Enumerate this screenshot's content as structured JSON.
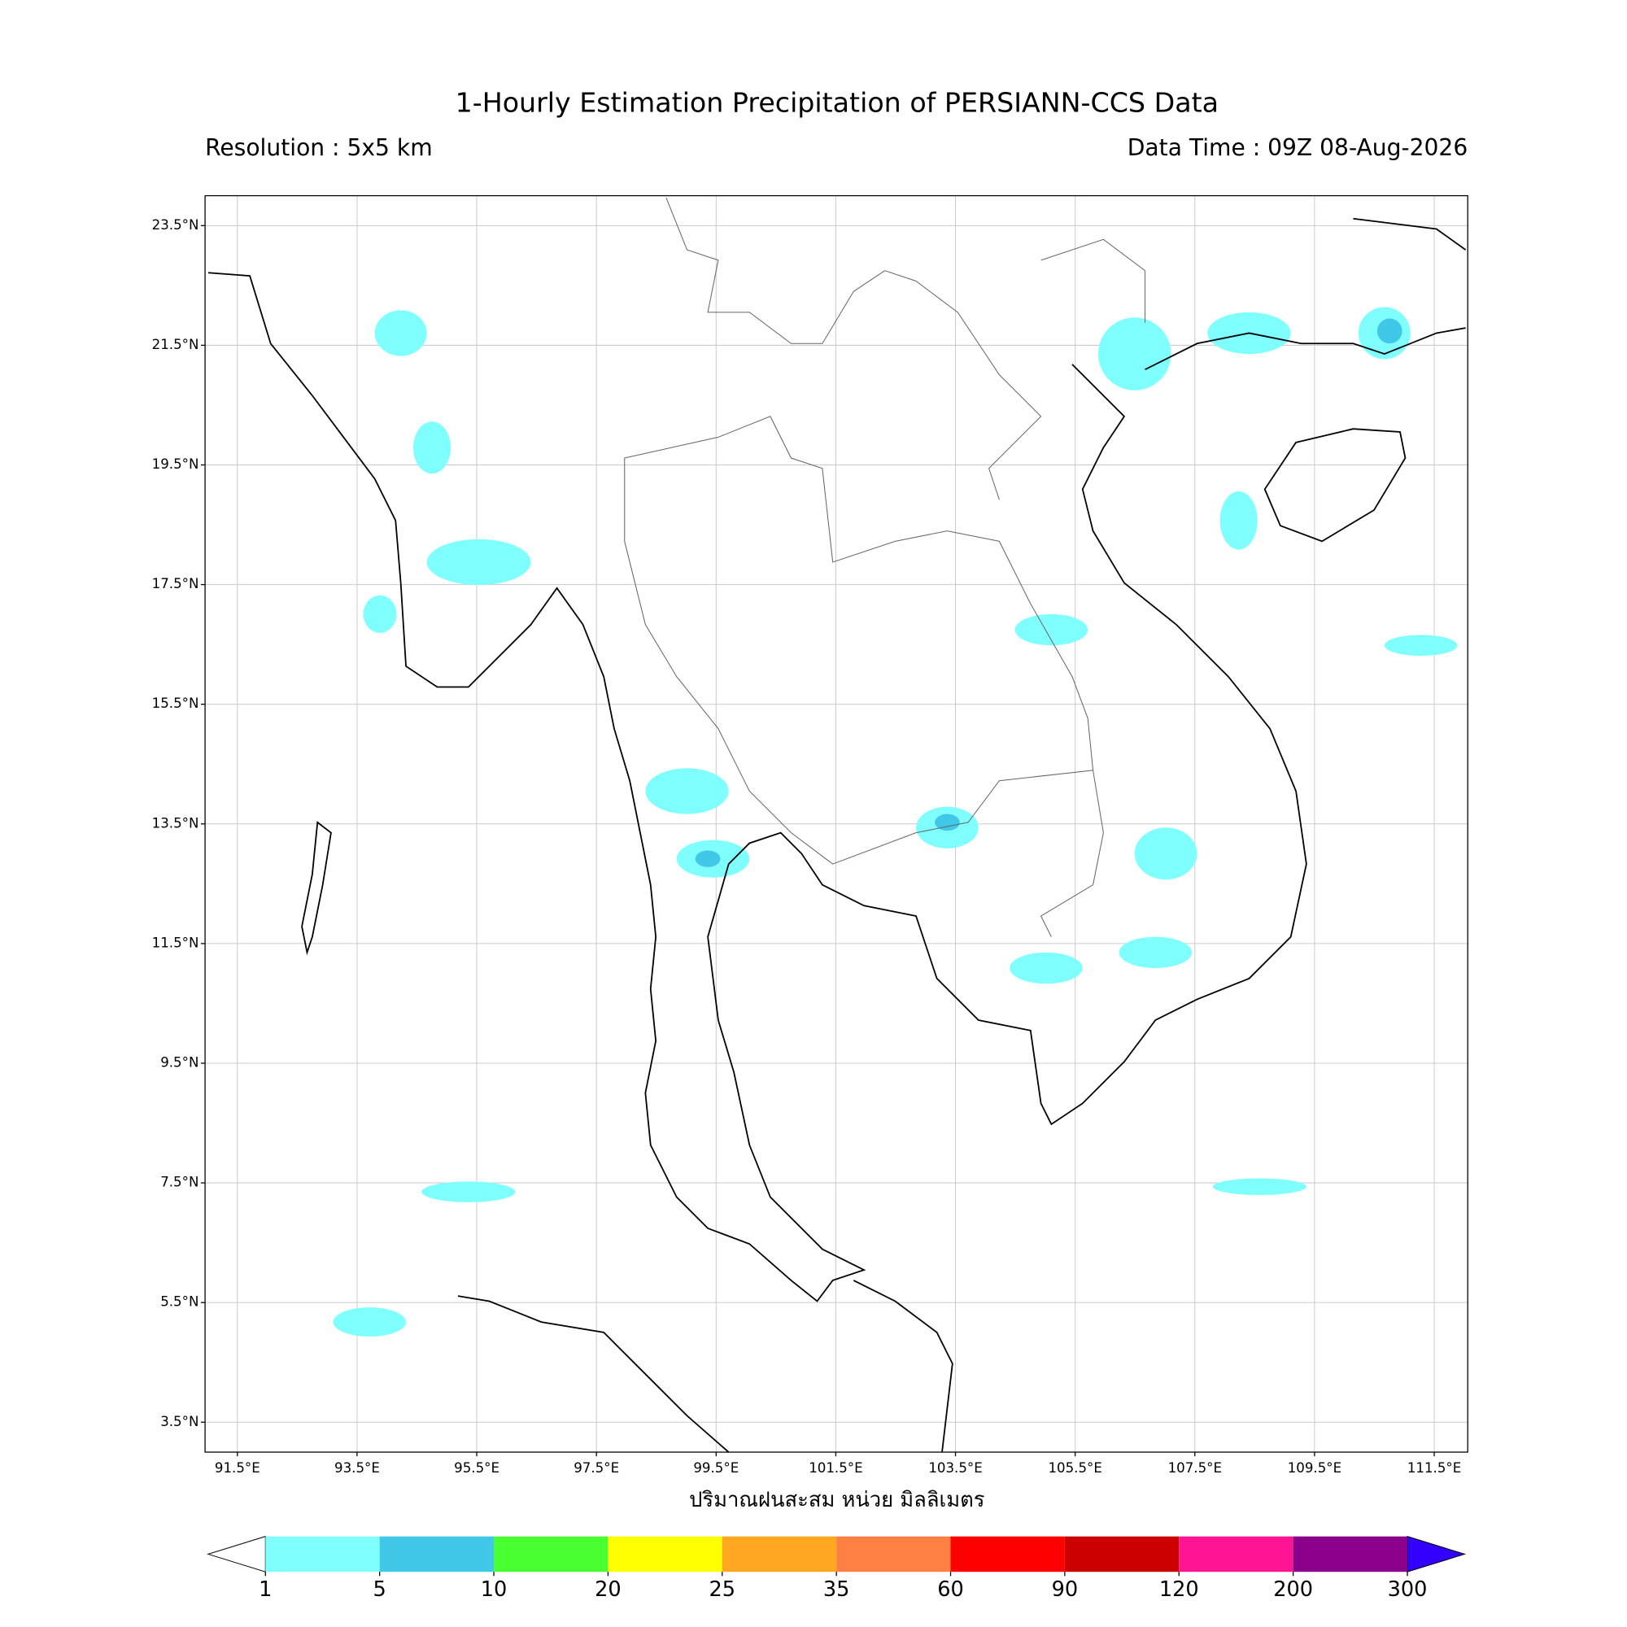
{
  "header": {
    "title": "1-Hourly Estimation Precipitation of PERSIANN-CCS Data",
    "resolution": "Resolution : 5x5 km",
    "data_time": "Data Time : 09Z 08-Aug-2026"
  },
  "map": {
    "xlim": [
      90.96,
      112.06
    ],
    "ylim": [
      3.0,
      24.0
    ],
    "grid": true,
    "xticks": [
      {
        "value": 91.5,
        "label": "91.5°E"
      },
      {
        "value": 93.5,
        "label": "93.5°E"
      },
      {
        "value": 95.5,
        "label": "95.5°E"
      },
      {
        "value": 97.5,
        "label": "97.5°E"
      },
      {
        "value": 99.5,
        "label": "99.5°E"
      },
      {
        "value": 101.5,
        "label": "101.5°E"
      },
      {
        "value": 103.5,
        "label": "103.5°E"
      },
      {
        "value": 105.5,
        "label": "105.5°E"
      },
      {
        "value": 107.5,
        "label": "107.5°E"
      },
      {
        "value": 109.5,
        "label": "109.5°E"
      },
      {
        "value": 111.5,
        "label": "111.5°E"
      }
    ],
    "yticks": [
      {
        "value": 23.5,
        "label": "23.5°N"
      },
      {
        "value": 21.5,
        "label": "21.5°N"
      },
      {
        "value": 19.5,
        "label": "19.5°N"
      },
      {
        "value": 17.5,
        "label": "17.5°N"
      },
      {
        "value": 15.5,
        "label": "15.5°N"
      },
      {
        "value": 13.5,
        "label": "13.5°N"
      },
      {
        "value": 11.5,
        "label": "11.5°N"
      },
      {
        "value": 9.5,
        "label": "9.5°N"
      },
      {
        "value": 7.5,
        "label": "7.5°N"
      },
      {
        "value": 5.5,
        "label": "5.5°N"
      },
      {
        "value": 3.5,
        "label": "3.5°N"
      }
    ],
    "xlabel": "ปริมาณฝนสะสม หน่วย มิลลิเมตร"
  },
  "colorbar": {
    "levels": [
      1,
      5,
      10,
      20,
      25,
      35,
      60,
      90,
      120,
      200,
      300
    ],
    "colors": [
      "#80ffff",
      "#40c8e8",
      "#48ff30",
      "#ffff00",
      "#ffa820",
      "#ff8040",
      "#ff0000",
      "#cc0000",
      "#ff1493",
      "#8b008b"
    ],
    "under_color": "#ffffff",
    "over_color": "#3300ff"
  }
}
